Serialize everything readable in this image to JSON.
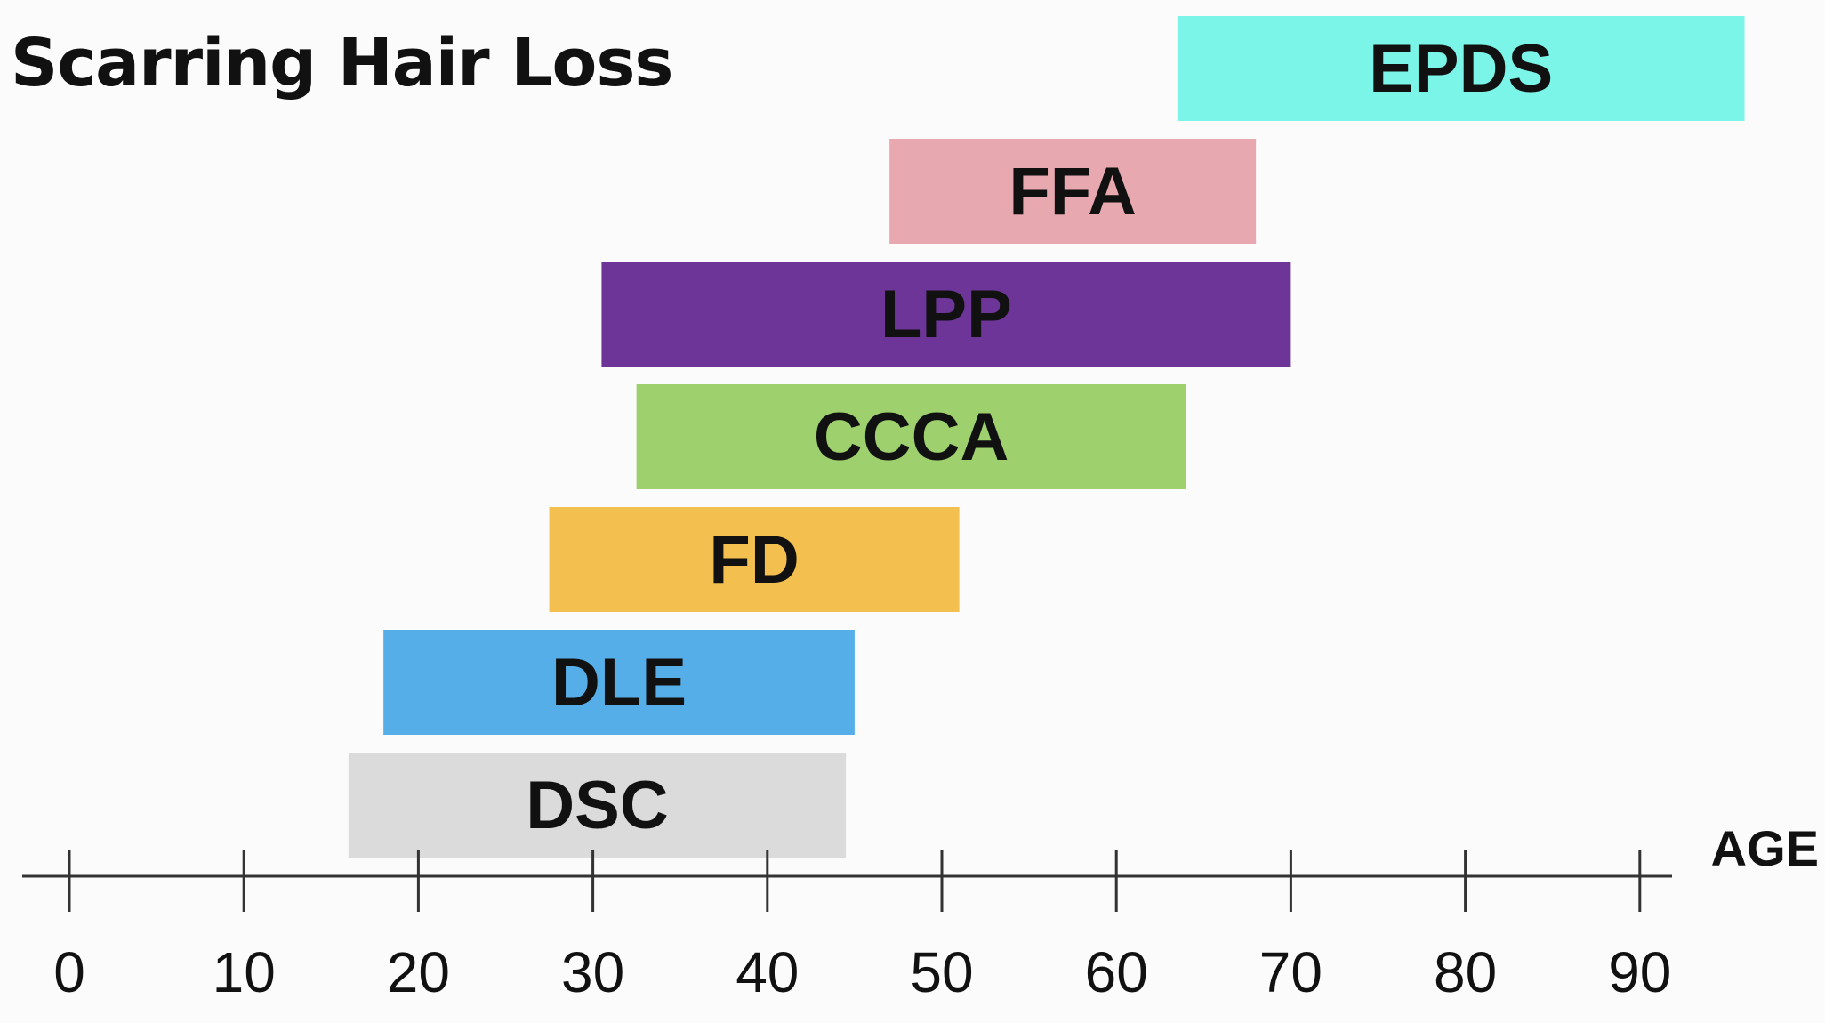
{
  "chart_data": {
    "type": "bar",
    "orientation": "horizontal-range",
    "title": "Scarring Hair Loss",
    "xlabel": "AGE",
    "ylabel": "",
    "xlim": [
      0,
      90
    ],
    "x_ticks": [
      0,
      10,
      20,
      30,
      40,
      50,
      60,
      70,
      80,
      90
    ],
    "grid": false,
    "legend": "none",
    "series": [
      {
        "name": "EPDS",
        "start": 63.5,
        "end": 96,
        "color": "#7af5e8"
      },
      {
        "name": "FFA",
        "start": 47,
        "end": 68,
        "color": "#e8a8b0"
      },
      {
        "name": "LPP",
        "start": 30.5,
        "end": 70,
        "color": "#6c3597"
      },
      {
        "name": "CCCA",
        "start": 32.5,
        "end": 64,
        "color": "#9ed06e"
      },
      {
        "name": "FD",
        "start": 27.5,
        "end": 51,
        "color": "#f3bf4f"
      },
      {
        "name": "DLE",
        "start": 18,
        "end": 45,
        "color": "#56aee8"
      },
      {
        "name": "DSC",
        "start": 16,
        "end": 44.5,
        "color": "#dcdbdc"
      }
    ]
  }
}
